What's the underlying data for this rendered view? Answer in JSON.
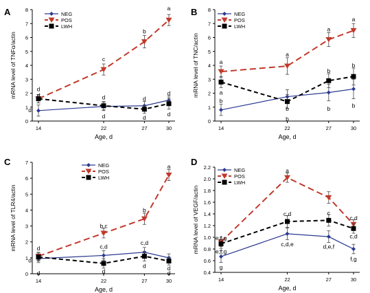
{
  "chart_data": [
    {
      "panel_label": "A",
      "type": "line",
      "x": [
        14,
        22,
        27,
        30
      ],
      "xlabel": "Age, d",
      "ylabel": "mRNA level of TNFα/actin",
      "ylim": [
        0,
        8
      ],
      "yticks": [
        0,
        1,
        2,
        3,
        4,
        5,
        6,
        7,
        8
      ],
      "legend_position": "top-left",
      "series": [
        {
          "name": "NEG",
          "values": [
            0.75,
            1.05,
            1.1,
            1.5
          ],
          "errors": [
            0.4,
            0.3,
            0.3,
            0.3
          ]
        },
        {
          "name": "POS",
          "values": [
            1.6,
            3.7,
            5.7,
            7.25
          ],
          "errors": [
            0.3,
            0.4,
            0.45,
            0.4
          ]
        },
        {
          "name": "LWH",
          "values": [
            1.6,
            1.1,
            0.85,
            1.25
          ],
          "errors": [
            0.3,
            0.3,
            0.3,
            0.4
          ]
        }
      ],
      "annotations": [
        {
          "x": 14,
          "text": "d",
          "y": 2.3
        },
        {
          "x": 14,
          "text": "d",
          "y": 1.85
        },
        {
          "x": 14,
          "text": "d",
          "y": 0.8,
          "side": "left"
        },
        {
          "x": 22,
          "text": "c",
          "y": 4.45
        },
        {
          "x": 22,
          "text": "d",
          "y": 1.7
        },
        {
          "x": 22,
          "text": "d",
          "y": 0.35
        },
        {
          "x": 27,
          "text": "b",
          "y": 6.45
        },
        {
          "x": 27,
          "text": "d",
          "y": 1.6
        },
        {
          "x": 27,
          "text": "d",
          "y": 0.25
        },
        {
          "x": 30,
          "text": "a",
          "y": 8.1
        },
        {
          "x": 30,
          "text": "d",
          "y": 2.0
        },
        {
          "x": 30,
          "text": "d",
          "y": 0.5
        }
      ]
    },
    {
      "panel_label": "B",
      "type": "line",
      "x": [
        14,
        22,
        27,
        30
      ],
      "xlabel": "Age, d",
      "ylabel": "mRNA level of TNC/actin",
      "ylim": [
        0,
        8
      ],
      "yticks": [
        0,
        1,
        2,
        3,
        4,
        5,
        6,
        7,
        8
      ],
      "legend_position": "top-left",
      "series": [
        {
          "name": "NEG",
          "values": [
            0.8,
            1.75,
            2.05,
            2.3
          ],
          "errors": [
            0.4,
            0.5,
            0.6,
            0.7
          ]
        },
        {
          "name": "POS",
          "values": [
            3.55,
            3.95,
            5.85,
            6.5
          ],
          "errors": [
            0.4,
            0.6,
            0.5,
            0.5
          ]
        },
        {
          "name": "LWH",
          "values": [
            2.8,
            1.4,
            2.9,
            3.2
          ],
          "errors": [
            0.4,
            0.5,
            0.5,
            0.6
          ]
        }
      ],
      "annotations": [
        {
          "x": 14,
          "text": "a",
          "y": 4.25
        },
        {
          "x": 14,
          "text": "a",
          "y": 2.05
        },
        {
          "x": 14,
          "text": "b",
          "y": 1.45
        },
        {
          "x": 22,
          "text": "a",
          "y": 4.8
        },
        {
          "x": 22,
          "text": "b",
          "y": 0.9
        },
        {
          "x": 22,
          "text": "b",
          "y": 0.15
        },
        {
          "x": 27,
          "text": "a",
          "y": 6.6
        },
        {
          "x": 27,
          "text": "b",
          "y": 3.6
        },
        {
          "x": 27,
          "text": "b",
          "y": 0.9
        },
        {
          "x": 30,
          "text": "a",
          "y": 7.3
        },
        {
          "x": 30,
          "text": "b",
          "y": 4.0
        },
        {
          "x": 30,
          "text": "b",
          "y": 1.1
        }
      ]
    },
    {
      "panel_label": "C",
      "type": "line",
      "x": [
        14,
        22,
        27,
        30
      ],
      "xlabel": "Age, d",
      "ylabel": "mRNA level of TLR4/actin",
      "ylim": [
        0,
        7
      ],
      "yticks": [
        0,
        1,
        2,
        3,
        4,
        5,
        6,
        7
      ],
      "legend_position": "top-center",
      "series": [
        {
          "name": "NEG",
          "values": [
            0.95,
            1.15,
            1.35,
            1.0
          ],
          "errors": [
            0.25,
            0.3,
            0.3,
            0.25
          ]
        },
        {
          "name": "POS",
          "values": [
            1.1,
            2.55,
            3.45,
            6.2
          ],
          "errors": [
            0.25,
            0.3,
            0.35,
            0.35
          ]
        },
        {
          "name": "LWH",
          "values": [
            1.05,
            0.65,
            1.1,
            0.8
          ],
          "errors": [
            0.25,
            0.3,
            0.3,
            0.25
          ]
        }
      ],
      "annotations": [
        {
          "x": 14,
          "text": "d",
          "y": 1.6
        },
        {
          "x": 14,
          "text": "d",
          "y": 0.85,
          "side": "left"
        },
        {
          "x": 14,
          "text": "d",
          "y": 0.05
        },
        {
          "x": 22,
          "text": "b,c",
          "y": 3.0
        },
        {
          "x": 22,
          "text": "c,d",
          "y": 1.7
        },
        {
          "x": 22,
          "text": "d",
          "y": 0.15
        },
        {
          "x": 27,
          "text": "b",
          "y": 4.0
        },
        {
          "x": 27,
          "text": "c,d",
          "y": 1.95
        },
        {
          "x": 27,
          "text": "d",
          "y": 0.5
        },
        {
          "x": 30,
          "text": "a",
          "y": 6.75
        },
        {
          "x": 30,
          "text": "d",
          "y": 0.35
        },
        {
          "x": 30,
          "text": "d",
          "y": 0.05
        }
      ]
    },
    {
      "panel_label": "D",
      "type": "line",
      "x": [
        14,
        22,
        27,
        30
      ],
      "xlabel": "Age, d",
      "ylabel": "mRNA level of VEGF/actin",
      "ylim": [
        0.4,
        2.2
      ],
      "yticks": [
        0.4,
        0.6,
        0.8,
        1.0,
        1.2,
        1.4,
        1.6,
        1.8,
        2.0,
        2.2
      ],
      "legend_position": "top-left",
      "series": [
        {
          "name": "NEG",
          "values": [
            0.67,
            1.06,
            1.01,
            0.8
          ],
          "errors": [
            0.1,
            0.1,
            0.1,
            0.08
          ]
        },
        {
          "name": "POS",
          "values": [
            0.92,
            2.02,
            1.68,
            1.22
          ],
          "errors": [
            0.08,
            0.08,
            0.1,
            0.08
          ]
        },
        {
          "name": "LWH",
          "values": [
            0.89,
            1.27,
            1.29,
            1.15
          ],
          "errors": [
            0.08,
            0.1,
            0.1,
            0.08
          ]
        }
      ],
      "annotations": [
        {
          "x": 14,
          "text": "e,f,g",
          "y": 0.99
        },
        {
          "x": 14,
          "text": "e,f,g",
          "y": 0.76
        },
        {
          "x": 14,
          "text": "g",
          "y": 0.49
        },
        {
          "x": 22,
          "text": "a",
          "y": 2.14
        },
        {
          "x": 22,
          "text": "c,d",
          "y": 1.4
        },
        {
          "x": 22,
          "text": "c,d,e",
          "y": 0.88
        },
        {
          "x": 27,
          "text": "c",
          "y": 1.42
        },
        {
          "x": 27,
          "text": "d,e,f",
          "y": 0.84
        },
        {
          "x": 30,
          "text": "c,d",
          "y": 1.33
        },
        {
          "x": 30,
          "text": "c,d",
          "y": 1.02
        },
        {
          "x": 30,
          "text": "f,g",
          "y": 0.63
        }
      ]
    }
  ],
  "colors": {
    "NEG": "#2b3990",
    "POS": "#c1392b",
    "LWH": "#000000",
    "axis": "#000000",
    "text": "#000000"
  },
  "series_styles": {
    "NEG": {
      "marker": "diamond",
      "dash": "solid"
    },
    "POS": {
      "marker": "triangle-down",
      "dash": "long-dash"
    },
    "LWH": {
      "marker": "square",
      "dash": "dash"
    }
  }
}
